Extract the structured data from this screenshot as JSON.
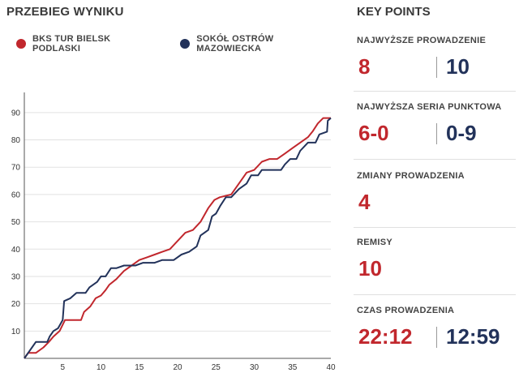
{
  "left": {
    "title": "PRZEBIEG WYNIKU"
  },
  "legend": [
    {
      "name": "BKS TUR BIELSK PODLASKI",
      "color": "#c1272d"
    },
    {
      "name": "SOKÓŁ OSTRÓW MAZOWIECKA",
      "color": "#22325a"
    }
  ],
  "chart_data": {
    "type": "line",
    "title": "PRZEBIEG WYNIKU",
    "xlabel": "",
    "ylabel": "",
    "xlim": [
      0,
      40
    ],
    "ylim": [
      0,
      95
    ],
    "x_ticks": [
      5,
      10,
      15,
      20,
      25,
      30,
      35,
      40
    ],
    "y_ticks": [
      10,
      20,
      30,
      40,
      50,
      60,
      70,
      80,
      90
    ],
    "grid": "horizontal",
    "legend_position": "top",
    "series": [
      {
        "name": "BKS TUR BIELSK PODLASKI",
        "color": "#c1272d",
        "points": [
          [
            0,
            0
          ],
          [
            0.5,
            2
          ],
          [
            1.5,
            2
          ],
          [
            2.5,
            4
          ],
          [
            3.2,
            6
          ],
          [
            3.8,
            8
          ],
          [
            4.6,
            10
          ],
          [
            5.3,
            14
          ],
          [
            7.4,
            14
          ],
          [
            7.8,
            17
          ],
          [
            8.6,
            19
          ],
          [
            9.3,
            22
          ],
          [
            10,
            23
          ],
          [
            10.6,
            25
          ],
          [
            11.1,
            27
          ],
          [
            12,
            29
          ],
          [
            13,
            32
          ],
          [
            14,
            34
          ],
          [
            15,
            36
          ],
          [
            16,
            37
          ],
          [
            17,
            38
          ],
          [
            18,
            39
          ],
          [
            19,
            40
          ],
          [
            20,
            43
          ],
          [
            21,
            46
          ],
          [
            22,
            47
          ],
          [
            23,
            50
          ],
          [
            24,
            55
          ],
          [
            24.8,
            58
          ],
          [
            25.5,
            59
          ],
          [
            27,
            60
          ],
          [
            28,
            64
          ],
          [
            29,
            68
          ],
          [
            30,
            69
          ],
          [
            31,
            72
          ],
          [
            32,
            73
          ],
          [
            33,
            73
          ],
          [
            34,
            75
          ],
          [
            35,
            77
          ],
          [
            36,
            79
          ],
          [
            37,
            81
          ],
          [
            37.6,
            83
          ],
          [
            38.3,
            86
          ],
          [
            39,
            88
          ],
          [
            40,
            88
          ]
        ]
      },
      {
        "name": "SOKÓŁ OSTRÓW MAZOWIECKA",
        "color": "#22325a",
        "points": [
          [
            0,
            0
          ],
          [
            0.5,
            2
          ],
          [
            1,
            4
          ],
          [
            1.5,
            6
          ],
          [
            3,
            6
          ],
          [
            3.3,
            8
          ],
          [
            3.8,
            10
          ],
          [
            4.4,
            11
          ],
          [
            5,
            14
          ],
          [
            5.2,
            21
          ],
          [
            6,
            22
          ],
          [
            6.8,
            24
          ],
          [
            8,
            24
          ],
          [
            8.5,
            26
          ],
          [
            9.5,
            28
          ],
          [
            10,
            30
          ],
          [
            10.6,
            30
          ],
          [
            11.3,
            33
          ],
          [
            12,
            33
          ],
          [
            13,
            34
          ],
          [
            14.5,
            34
          ],
          [
            15.5,
            35
          ],
          [
            17,
            35
          ],
          [
            18,
            36
          ],
          [
            19.5,
            36
          ],
          [
            20.5,
            38
          ],
          [
            21.5,
            39
          ],
          [
            22.5,
            41
          ],
          [
            23,
            45
          ],
          [
            24,
            47
          ],
          [
            24.5,
            52
          ],
          [
            25,
            53
          ],
          [
            25.6,
            56
          ],
          [
            26.3,
            59
          ],
          [
            27,
            59
          ],
          [
            28,
            62
          ],
          [
            29,
            64
          ],
          [
            29.6,
            67
          ],
          [
            30.5,
            67
          ],
          [
            31,
            69
          ],
          [
            32,
            69
          ],
          [
            33.5,
            69
          ],
          [
            34,
            71
          ],
          [
            34.7,
            73
          ],
          [
            35.5,
            73
          ],
          [
            36,
            76
          ],
          [
            37,
            79
          ],
          [
            38,
            79
          ],
          [
            38.5,
            82
          ],
          [
            39.5,
            83
          ],
          [
            39.6,
            87
          ],
          [
            40,
            88
          ]
        ]
      }
    ]
  },
  "key_points": {
    "title": "KEY POINTS",
    "items": [
      {
        "label": "NAJWYŻSZE PROWADZENIE",
        "home": "8",
        "away": "10"
      },
      {
        "label": "NAJWYŻSZA SERIA PUNKTOWA",
        "home": "6-0",
        "away": "0-9"
      },
      {
        "label": "ZMIANY PROWADZENIA",
        "home": "4",
        "away": ""
      },
      {
        "label": "REMISY",
        "home": "10",
        "away": ""
      },
      {
        "label": "CZAS PROWADZENIA",
        "home": "22:12",
        "away": "12:59"
      }
    ]
  }
}
